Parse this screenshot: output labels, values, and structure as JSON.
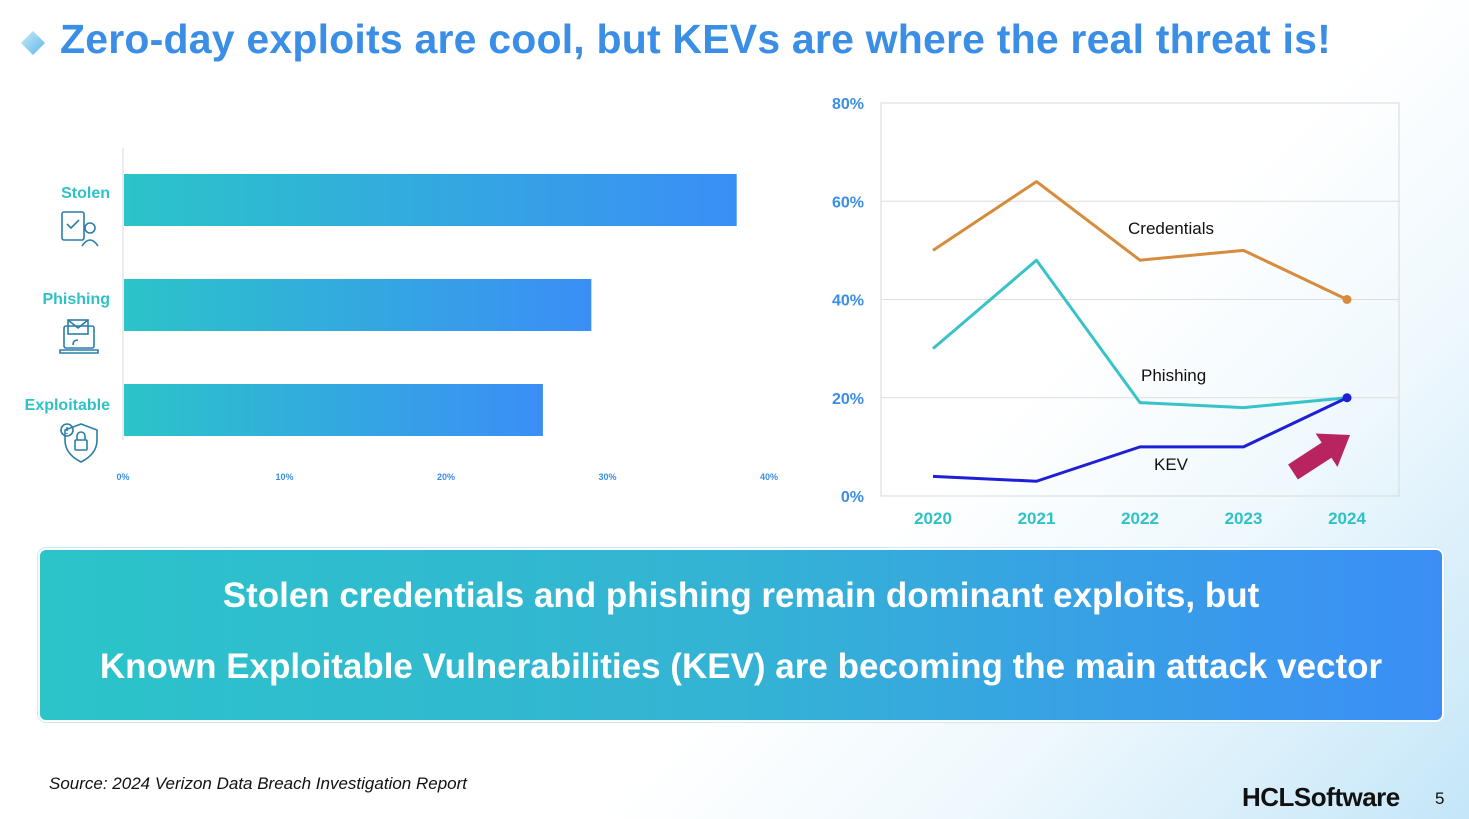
{
  "slide": {
    "title": "Zero-day exploits are cool, but KEVs are where the real threat is!",
    "banner_line1": "Stolen credentials and phishing remain dominant exploits, but",
    "banner_line2": "Known Exploitable Vulnerabilities (KEV) are becoming the main attack vector",
    "source": "Source: 2024 Verizon Data Breach Investigation Report",
    "logo": "HCLSoftware",
    "page_number": "5"
  },
  "colors": {
    "title": "#3a8ee6",
    "bar_start": "#2bc4c9",
    "bar_end": "#3b8ef6",
    "credentials": "#d78b3c",
    "phishing": "#38c3c8",
    "kev": "#1f1fd6",
    "arrow": "#b8245e"
  },
  "chart_data": [
    {
      "type": "bar",
      "orientation": "horizontal",
      "categories": [
        "Stolen",
        "Phishing",
        "Exploitable"
      ],
      "category_icons": [
        "credential-card-icon",
        "phishing-envelope-laptop-icon",
        "exploit-shield-lock-icon"
      ],
      "values": [
        38,
        29,
        26
      ],
      "unit": "%",
      "xlim": [
        0,
        40
      ],
      "xticks": [
        "0%",
        "10%",
        "20%",
        "30%",
        "40%"
      ],
      "grid": false
    },
    {
      "type": "line",
      "x": [
        "2020",
        "2021",
        "2022",
        "2023",
        "2024"
      ],
      "ylim": [
        0,
        80
      ],
      "yticks": [
        "0%",
        "20%",
        "40%",
        "60%",
        "80%"
      ],
      "grid": true,
      "series": [
        {
          "name": "Credentials",
          "values": [
            50,
            64,
            48,
            50,
            40
          ]
        },
        {
          "name": "Phishing",
          "values": [
            30,
            48,
            19,
            18,
            20
          ]
        },
        {
          "name": "KEV",
          "values": [
            4,
            3,
            10,
            10,
            20
          ]
        }
      ],
      "annotation": "up-trend-arrow-icon"
    }
  ]
}
